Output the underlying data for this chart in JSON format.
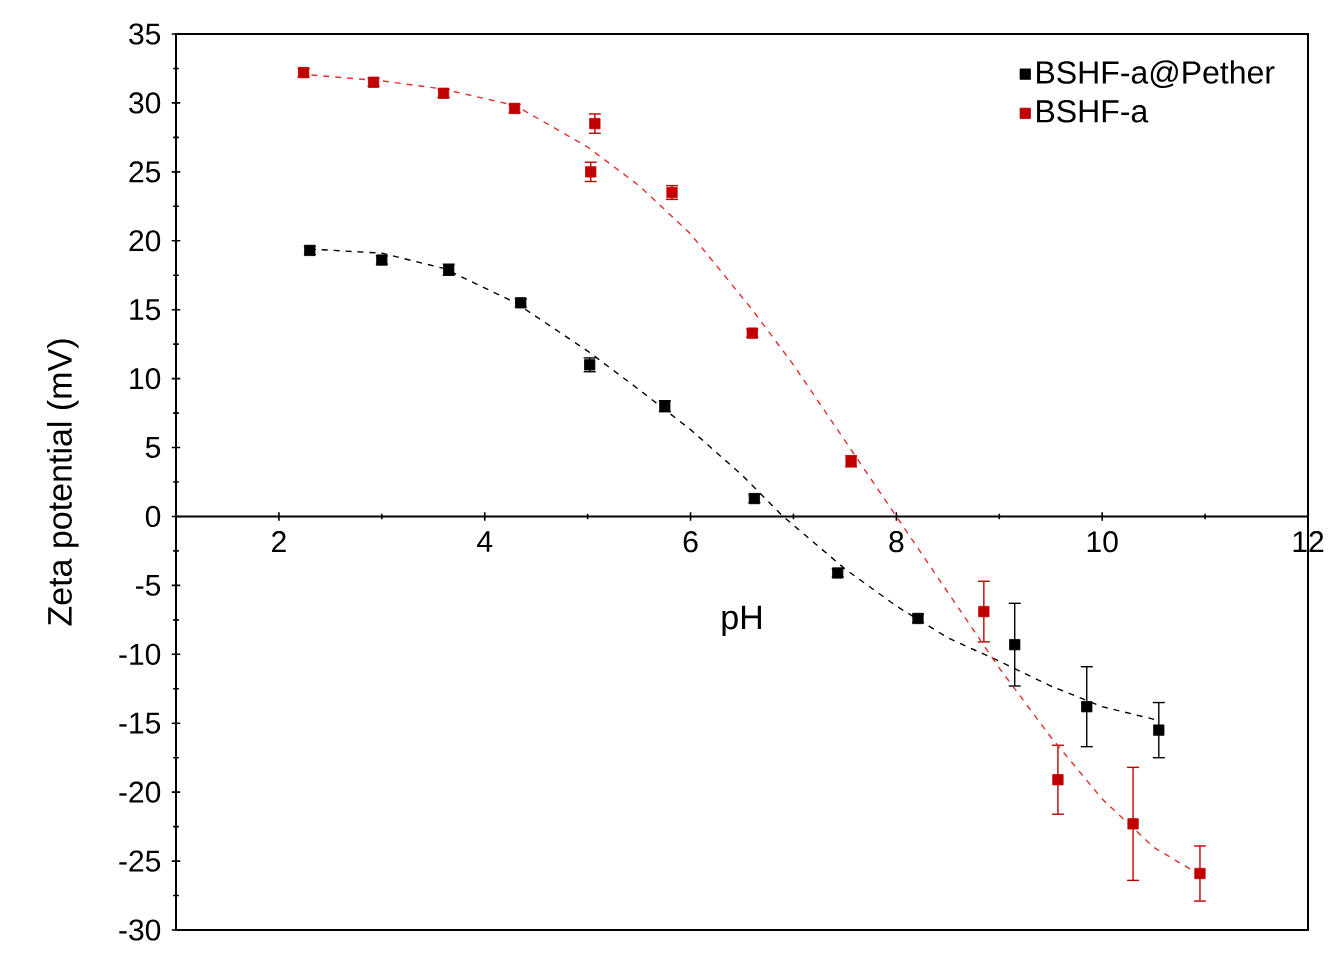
{
  "chart_data": {
    "type": "scatter",
    "xlabel": "pH",
    "ylabel": "Zeta potential (mV)",
    "xlim": [
      1,
      12
    ],
    "xticks": [
      2,
      4,
      6,
      8,
      10,
      12
    ],
    "ylim": [
      -30,
      35
    ],
    "yticks": [
      -30,
      -25,
      -20,
      -15,
      -10,
      -5,
      0,
      5,
      10,
      15,
      20,
      25,
      30,
      35
    ],
    "marker": "square",
    "legend": "top right",
    "series": [
      {
        "name": "BSHF-a@Pether",
        "color": "#000000",
        "x": [
          2.3,
          3.0,
          3.65,
          4.35,
          5.02,
          5.75,
          6.62,
          7.43,
          8.21,
          9.15,
          9.85,
          10.55
        ],
        "values": [
          19.3,
          18.6,
          17.9,
          15.5,
          11.0,
          8.0,
          1.3,
          -4.1,
          -7.4,
          -9.3,
          -13.8,
          -15.5
        ],
        "errors": [
          0.3,
          0.3,
          0.4,
          0.3,
          0.5,
          0.4,
          0.3,
          0.3,
          0.3,
          3.0,
          2.9,
          2.0
        ]
      },
      {
        "name": "BSHF-a",
        "color": "#c00000",
        "x": [
          2.24,
          2.92,
          3.6,
          4.29,
          5.03,
          5.07,
          5.82,
          6.6,
          7.56,
          8.85,
          9.57,
          10.3,
          10.95
        ],
        "values": [
          32.2,
          31.5,
          30.7,
          29.6,
          25.0,
          28.5,
          23.5,
          13.3,
          4.0,
          -6.9,
          -19.1,
          -22.3,
          -25.9
        ],
        "errors": [
          0.3,
          0.3,
          0.3,
          0.3,
          0.7,
          0.7,
          0.5,
          0.3,
          0.4,
          2.2,
          2.5,
          4.1,
          2.0
        ]
      },
      {
        "type": "line",
        "marker": "none",
        "line_style": "dashed",
        "color": "#000000",
        "x": [
          2.3,
          3.0,
          3.6,
          4.3,
          5.0,
          5.5,
          6.0,
          6.5,
          6.9,
          7.5,
          8.0,
          8.5,
          9.0,
          9.5,
          10.0,
          10.55
        ],
        "values": [
          19.4,
          19.1,
          18.0,
          15.5,
          12.0,
          9.2,
          6.3,
          3.0,
          0.0,
          -3.8,
          -6.5,
          -8.8,
          -10.5,
          -12.3,
          -13.8,
          -14.8
        ]
      },
      {
        "type": "line",
        "marker": "none",
        "line_style": "dashed",
        "color": "#e03030",
        "x": [
          2.2,
          3.0,
          3.6,
          4.3,
          5.0,
          5.5,
          6.0,
          6.6,
          7.0,
          7.5,
          8.0,
          8.5,
          9.0,
          9.5,
          10.0,
          10.5,
          10.95
        ],
        "values": [
          32.1,
          31.6,
          31.0,
          29.8,
          26.8,
          24.0,
          20.5,
          15.0,
          11.0,
          5.5,
          0.0,
          -5.5,
          -11.0,
          -16.0,
          -20.5,
          -24.0,
          -26.0
        ]
      }
    ]
  }
}
